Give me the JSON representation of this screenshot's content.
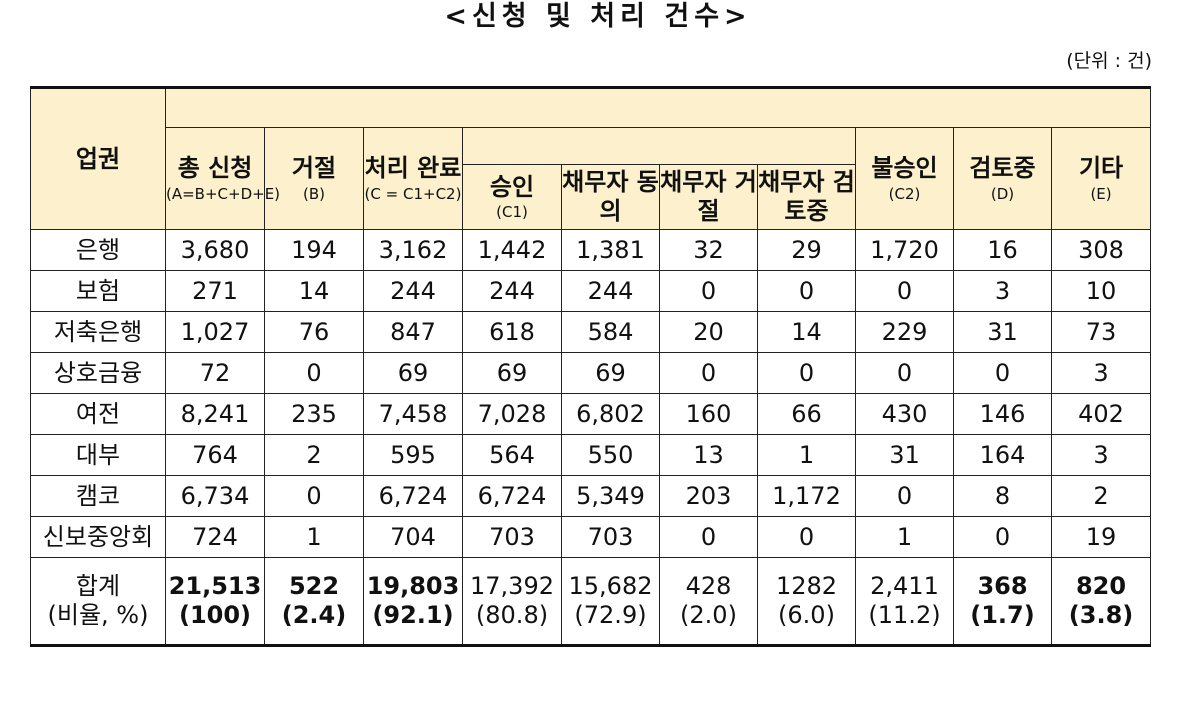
{
  "title": "<신청 및 처리 건수>",
  "unit": "(단위 : 건)",
  "headers": {
    "sector": "업권",
    "total_apply": {
      "label": "총 신청",
      "sub": "(A=B+C+D+E)"
    },
    "rejected": {
      "label": "거절",
      "sub": "(B)"
    },
    "processed": {
      "label": "처리 완료",
      "sub": "(C = C1+C2)"
    },
    "approved": {
      "label": "승인",
      "sub": "(C1)"
    },
    "debtor_agree": "채무자 동의",
    "debtor_reject": "채무자 거절",
    "debtor_review": "채무자 검토중",
    "not_approved": {
      "label": "불승인",
      "sub": "(C2)"
    },
    "reviewing": {
      "label": "검토중",
      "sub": "(D)"
    },
    "other": {
      "label": "기타",
      "sub": "(E)"
    }
  },
  "rows": [
    {
      "sector": "은행",
      "a": "3,680",
      "b": "194",
      "c": "3,162",
      "c1": "1,442",
      "agree": "1,381",
      "reject": "32",
      "review": "29",
      "c2": "1,720",
      "d": "16",
      "e": "308"
    },
    {
      "sector": "보험",
      "a": "271",
      "b": "14",
      "c": "244",
      "c1": "244",
      "agree": "244",
      "reject": "0",
      "review": "0",
      "c2": "0",
      "d": "3",
      "e": "10"
    },
    {
      "sector": "저축은행",
      "a": "1,027",
      "b": "76",
      "c": "847",
      "c1": "618",
      "agree": "584",
      "reject": "20",
      "review": "14",
      "c2": "229",
      "d": "31",
      "e": "73"
    },
    {
      "sector": "상호금융",
      "a": "72",
      "b": "0",
      "c": "69",
      "c1": "69",
      "agree": "69",
      "reject": "0",
      "review": "0",
      "c2": "0",
      "d": "0",
      "e": "3"
    },
    {
      "sector": "여전",
      "a": "8,241",
      "b": "235",
      "c": "7,458",
      "c1": "7,028",
      "agree": "6,802",
      "reject": "160",
      "review": "66",
      "c2": "430",
      "d": "146",
      "e": "402"
    },
    {
      "sector": "대부",
      "a": "764",
      "b": "2",
      "c": "595",
      "c1": "564",
      "agree": "550",
      "reject": "13",
      "review": "1",
      "c2": "31",
      "d": "164",
      "e": "3"
    },
    {
      "sector": "캠코",
      "a": "6,734",
      "b": "0",
      "c": "6,724",
      "c1": "6,724",
      "agree": "5,349",
      "reject": "203",
      "review": "1,172",
      "c2": "0",
      "d": "8",
      "e": "2"
    },
    {
      "sector": "신보중앙회",
      "a": "724",
      "b": "1",
      "c": "704",
      "c1": "703",
      "agree": "703",
      "reject": "0",
      "review": "0",
      "c2": "1",
      "d": "0",
      "e": "19"
    }
  ],
  "total": {
    "label1": "합계",
    "label2": "(비율, %)",
    "a": "21,513",
    "a_pct": "(100)",
    "b": "522",
    "b_pct": "(2.4)",
    "c": "19,803",
    "c_pct": "(92.1)",
    "c1": "17,392",
    "c1_pct": "(80.8)",
    "agree": "15,682",
    "agree_pct": "(72.9)",
    "reject": "428",
    "reject_pct": "(2.0)",
    "review": "1282",
    "review_pct": "(6.0)",
    "c2": "2,411",
    "c2_pct": "(11.2)",
    "d": "368",
    "d_pct": "(1.7)",
    "e": "820",
    "e_pct": "(3.8)"
  }
}
